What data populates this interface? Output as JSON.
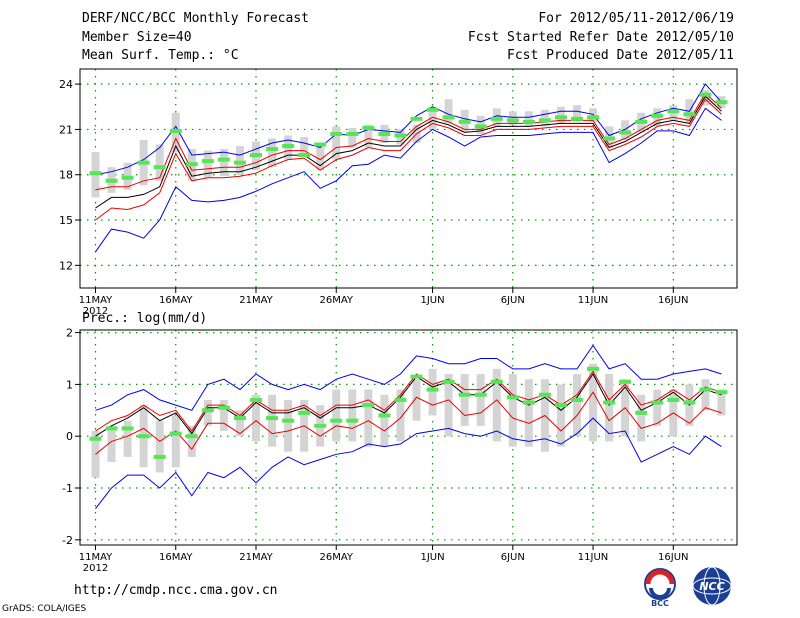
{
  "header": {
    "title": "DERF/NCC/BCC Monthly Forecast",
    "member_size": "Member Size=40",
    "variable": "Mean Surf. Temp.: °C",
    "period": "For 2012/05/11-2012/06/19",
    "fcst_start": "Fcst Started Refer Date 2012/05/10",
    "fcst_produced": "Fcst Produced Date 2012/05/11"
  },
  "footer": {
    "url": "http://cmdp.ncc.cma.gov.cn",
    "credit": "GrADS: COLA/IGES",
    "logo_left_text": "BCC",
    "logo_right_text": "NCC"
  },
  "colors": {
    "box": "#d4d4d4",
    "median": "#55e655",
    "blue": "#0000ee",
    "red": "#ee0000",
    "black": "#000000",
    "grid": "#009900"
  },
  "chart_data": [
    {
      "type": "box",
      "title": "Mean Surf. Temp.: °C",
      "x_ticks": [
        "11MAY",
        "16MAY",
        "21MAY",
        "26MAY",
        "1JUN",
        "6JUN",
        "11JUN",
        "16JUN"
      ],
      "x_tick_days": [
        0,
        5,
        10,
        15,
        21,
        26,
        31,
        36
      ],
      "x_year_label": "2012",
      "ylim": [
        10.5,
        25
      ],
      "y_ticks": [
        12,
        15,
        18,
        21,
        24
      ],
      "grid": true,
      "days": [
        0,
        1,
        2,
        3,
        4,
        5,
        6,
        7,
        8,
        9,
        10,
        11,
        12,
        13,
        14,
        15,
        16,
        17,
        18,
        19,
        20,
        21,
        22,
        23,
        24,
        25,
        26,
        27,
        28,
        29,
        30,
        31,
        32,
        33,
        34,
        35,
        36,
        37,
        38,
        39
      ],
      "box_low": [
        16.5,
        16.8,
        17.0,
        17.3,
        17.6,
        19.5,
        17.6,
        17.8,
        17.9,
        18.0,
        18.3,
        18.5,
        19.0,
        19.3,
        18.3,
        19.0,
        19.8,
        19.8,
        20.1,
        20.0,
        20.1,
        21.0,
        21.4,
        20.8,
        20.7,
        21.2,
        21.3,
        21.2,
        21.2,
        21.4,
        21.5,
        21.5,
        19.8,
        20.3,
        20.8,
        21.2,
        21.6,
        21.5,
        22.6,
        22.4
      ],
      "box_high": [
        19.5,
        18.5,
        18.8,
        20.3,
        20.0,
        22.1,
        19.7,
        19.6,
        19.7,
        19.9,
        20.2,
        20.4,
        20.6,
        20.5,
        20.0,
        21.2,
        21.1,
        21.3,
        21.3,
        21.0,
        21.3,
        22.5,
        23.0,
        22.3,
        21.9,
        22.4,
        22.2,
        22.2,
        22.3,
        22.5,
        22.6,
        22.4,
        21.2,
        21.6,
        22.1,
        22.4,
        22.6,
        23.0,
        23.6,
        23.2
      ],
      "median": [
        18.1,
        17.6,
        17.8,
        18.8,
        18.5,
        20.9,
        18.7,
        18.9,
        19.0,
        18.8,
        19.3,
        19.7,
        19.9,
        19.3,
        20.0,
        20.7,
        20.7,
        21.1,
        20.7,
        20.6,
        21.7,
        22.3,
        21.8,
        21.5,
        21.2,
        21.7,
        21.6,
        21.5,
        21.6,
        21.8,
        21.7,
        21.8,
        20.4,
        20.8,
        21.5,
        21.9,
        22.2,
        22.0,
        23.3,
        22.8
      ],
      "max": [
        18.0,
        18.2,
        18.5,
        19.0,
        19.8,
        21.2,
        19.3,
        19.4,
        19.5,
        19.3,
        19.7,
        20.1,
        20.3,
        20.1,
        19.8,
        20.7,
        20.6,
        21.0,
        20.9,
        20.8,
        21.9,
        22.5,
        22.0,
        21.7,
        21.5,
        21.9,
        21.8,
        21.8,
        22.0,
        22.2,
        22.2,
        22.0,
        20.6,
        21.0,
        21.7,
        22.1,
        22.4,
        22.2,
        24.0,
        22.8
      ],
      "upper": [
        17.0,
        17.2,
        17.2,
        17.6,
        17.8,
        20.4,
        18.3,
        18.4,
        18.5,
        18.5,
        18.8,
        19.3,
        19.6,
        19.6,
        19.0,
        19.8,
        19.9,
        20.4,
        20.2,
        20.2,
        21.2,
        21.8,
        21.5,
        21.0,
        21.0,
        21.4,
        21.4,
        21.4,
        21.5,
        21.6,
        21.6,
        21.6,
        20.0,
        20.4,
        21.0,
        21.6,
        21.8,
        21.6,
        23.4,
        22.4
      ],
      "mean": [
        15.8,
        16.5,
        16.5,
        16.7,
        17.2,
        19.9,
        17.9,
        18.1,
        18.2,
        18.2,
        18.5,
        18.9,
        19.3,
        19.3,
        18.6,
        19.4,
        19.6,
        20.1,
        19.9,
        19.9,
        21.0,
        21.6,
        21.3,
        20.8,
        20.9,
        21.2,
        21.2,
        21.2,
        21.3,
        21.4,
        21.4,
        21.4,
        19.8,
        20.2,
        20.8,
        21.4,
        21.6,
        21.4,
        23.2,
        22.2
      ],
      "lower": [
        15.0,
        15.8,
        15.7,
        16.0,
        16.8,
        19.4,
        17.6,
        17.8,
        17.8,
        17.9,
        18.1,
        18.6,
        19.0,
        19.1,
        18.3,
        19.0,
        19.3,
        19.8,
        19.6,
        19.6,
        20.7,
        21.4,
        21.1,
        20.6,
        20.6,
        21.0,
        21.0,
        21.0,
        21.1,
        21.2,
        21.2,
        21.2,
        19.6,
        20.0,
        20.5,
        21.2,
        21.4,
        21.2,
        23.0,
        22.0
      ],
      "min": [
        12.9,
        14.4,
        14.2,
        13.8,
        15.0,
        17.2,
        16.3,
        16.2,
        16.3,
        16.5,
        16.9,
        17.4,
        17.8,
        18.2,
        17.1,
        17.6,
        18.6,
        18.7,
        19.3,
        19.1,
        20.2,
        21.0,
        20.5,
        19.9,
        20.5,
        20.6,
        20.6,
        20.6,
        20.7,
        20.8,
        20.8,
        20.8,
        18.8,
        19.4,
        20.1,
        20.9,
        20.9,
        20.6,
        22.4,
        21.6
      ]
    },
    {
      "type": "box",
      "title": "Prec.: log(mm/d)",
      "x_ticks": [
        "11MAY",
        "16MAY",
        "21MAY",
        "26MAY",
        "1JUN",
        "6JUN",
        "11JUN",
        "16JUN"
      ],
      "x_tick_days": [
        0,
        5,
        10,
        15,
        21,
        26,
        31,
        36
      ],
      "x_year_label": "2012",
      "ylim": [
        -2.1,
        2.05
      ],
      "y_ticks": [
        -2,
        -1,
        0,
        1,
        2
      ],
      "grid": true,
      "days": [
        0,
        1,
        2,
        3,
        4,
        5,
        6,
        7,
        8,
        9,
        10,
        11,
        12,
        13,
        14,
        15,
        16,
        17,
        18,
        19,
        20,
        21,
        22,
        23,
        24,
        25,
        26,
        27,
        28,
        29,
        30,
        31,
        32,
        33,
        34,
        35,
        36,
        37,
        38,
        39
      ],
      "box_low": [
        -0.8,
        -0.5,
        -0.4,
        -0.6,
        -0.7,
        -0.6,
        -0.4,
        0.2,
        0.1,
        0.0,
        -0.1,
        -0.2,
        -0.3,
        -0.3,
        -0.2,
        -0.1,
        -0.1,
        -0.2,
        -0.2,
        -0.1,
        0.3,
        0.4,
        0.0,
        0.2,
        0.2,
        -0.1,
        -0.2,
        -0.2,
        -0.3,
        -0.2,
        0.0,
        -0.1,
        -0.1,
        0.0,
        -0.1,
        0.2,
        0.0,
        0.2,
        0.5,
        0.4
      ],
      "box_high": [
        0.1,
        0.2,
        0.3,
        0.6,
        0.3,
        0.4,
        0.2,
        0.7,
        0.7,
        0.5,
        0.8,
        0.8,
        0.7,
        0.7,
        0.6,
        0.9,
        0.9,
        0.9,
        0.8,
        0.9,
        1.1,
        1.3,
        1.2,
        1.2,
        1.2,
        1.3,
        1.2,
        1.1,
        1.1,
        1.0,
        1.2,
        1.4,
        1.2,
        1.1,
        0.8,
        0.9,
        0.9,
        1.0,
        1.1,
        0.9
      ],
      "median": [
        -0.05,
        0.15,
        0.15,
        0.0,
        -0.4,
        0.05,
        0.0,
        0.5,
        0.55,
        0.35,
        0.7,
        0.35,
        0.3,
        0.45,
        0.2,
        0.3,
        0.3,
        0.6,
        0.4,
        0.7,
        1.15,
        0.9,
        1.05,
        0.8,
        0.8,
        1.05,
        0.75,
        0.65,
        0.8,
        0.6,
        0.7,
        1.3,
        0.65,
        1.05,
        0.45,
        0.65,
        0.7,
        0.65,
        0.9,
        0.85
      ],
      "max": [
        0.5,
        0.6,
        0.8,
        0.9,
        0.7,
        0.6,
        0.5,
        1.0,
        1.1,
        0.9,
        1.2,
        1.0,
        0.9,
        1.0,
        0.9,
        1.1,
        1.2,
        1.1,
        1.0,
        1.2,
        1.55,
        1.5,
        1.4,
        1.4,
        1.5,
        1.5,
        1.3,
        1.3,
        1.4,
        1.3,
        1.3,
        1.75,
        1.3,
        1.4,
        1.1,
        1.1,
        1.2,
        1.25,
        1.3,
        1.2
      ],
      "upper": [
        0.1,
        0.3,
        0.4,
        0.6,
        0.4,
        0.5,
        0.1,
        0.6,
        0.6,
        0.4,
        0.7,
        0.5,
        0.5,
        0.6,
        0.4,
        0.6,
        0.6,
        0.7,
        0.5,
        0.8,
        1.2,
        1.0,
        1.1,
        0.9,
        0.9,
        1.1,
        0.8,
        0.7,
        0.8,
        0.6,
        0.8,
        1.25,
        0.7,
        1.0,
        0.6,
        0.7,
        0.9,
        0.7,
        0.95,
        0.85
      ],
      "mean": [
        0.0,
        0.2,
        0.35,
        0.55,
        0.3,
        0.45,
        0.05,
        0.55,
        0.55,
        0.35,
        0.65,
        0.45,
        0.45,
        0.55,
        0.35,
        0.55,
        0.55,
        0.6,
        0.45,
        0.75,
        1.15,
        0.95,
        1.05,
        0.8,
        0.8,
        1.05,
        0.75,
        0.6,
        0.75,
        0.5,
        0.75,
        1.2,
        0.6,
        0.95,
        0.5,
        0.65,
        0.85,
        0.6,
        0.9,
        0.8
      ],
      "lower": [
        -0.35,
        -0.1,
        0.0,
        0.15,
        -0.1,
        0.1,
        -0.25,
        0.25,
        0.25,
        0.05,
        0.3,
        0.05,
        0.1,
        0.2,
        0.0,
        0.2,
        0.15,
        0.3,
        0.1,
        0.35,
        0.75,
        0.6,
        0.7,
        0.4,
        0.45,
        0.7,
        0.35,
        0.25,
        0.4,
        0.1,
        0.4,
        0.85,
        0.3,
        0.55,
        0.15,
        0.25,
        0.45,
        0.25,
        0.55,
        0.45
      ],
      "min": [
        -1.4,
        -1.0,
        -0.75,
        -0.75,
        -1.0,
        -0.7,
        -1.15,
        -0.7,
        -0.8,
        -0.6,
        -0.9,
        -0.6,
        -0.4,
        -0.55,
        -0.45,
        -0.35,
        -0.3,
        -0.15,
        -0.2,
        -0.15,
        0.05,
        0.1,
        0.15,
        0.05,
        0.0,
        0.1,
        -0.05,
        -0.1,
        -0.05,
        -0.15,
        0.05,
        0.35,
        0.05,
        0.1,
        -0.5,
        -0.35,
        -0.2,
        -0.35,
        0.0,
        -0.2
      ]
    }
  ]
}
